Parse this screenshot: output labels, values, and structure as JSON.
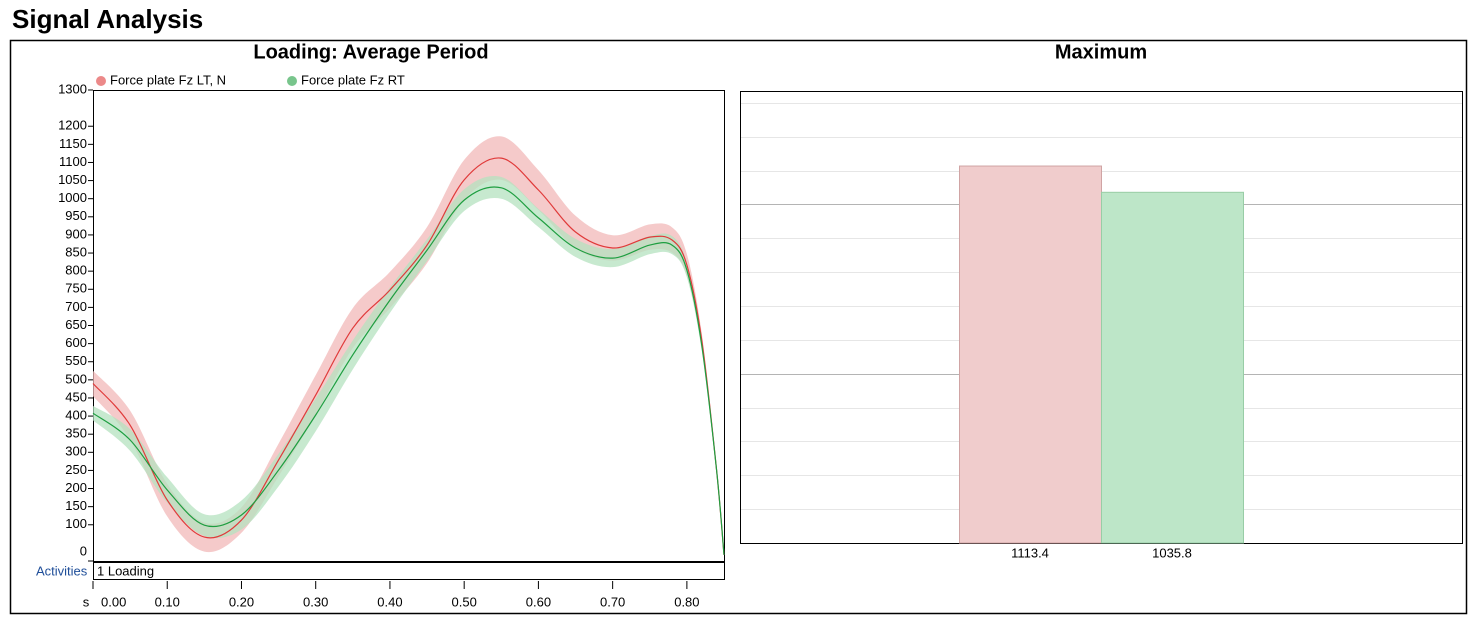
{
  "page": {
    "title": "Signal Analysis"
  },
  "activities": {
    "label": "Activities",
    "items": [
      "1 Loading"
    ]
  },
  "chart_data": [
    {
      "type": "line",
      "title": "Loading: Average Period",
      "x_label": "s",
      "x": [
        0,
        0.05,
        0.1,
        0.15,
        0.2,
        0.25,
        0.3,
        0.35,
        0.4,
        0.45,
        0.5,
        0.55,
        0.6,
        0.65,
        0.7,
        0.75,
        0.78,
        0.8,
        0.82,
        0.84,
        0.85
      ],
      "xlim": [
        0,
        0.85
      ],
      "xticks": [
        {
          "value": 0,
          "label": "0.00"
        },
        {
          "value": 0.1,
          "label": "0.10"
        },
        {
          "value": 0.2,
          "label": "0.20"
        },
        {
          "value": 0.3,
          "label": "0.30"
        },
        {
          "value": 0.4,
          "label": "0.40"
        },
        {
          "value": 0.5,
          "label": "0.50"
        },
        {
          "value": 0.6,
          "label": "0.60"
        },
        {
          "value": 0.7,
          "label": "0.70"
        },
        {
          "value": 0.8,
          "label": "0.80"
        }
      ],
      "ylim": [
        0,
        1300
      ],
      "yticks": [
        0,
        100,
        150,
        200,
        250,
        300,
        350,
        400,
        450,
        500,
        550,
        600,
        650,
        700,
        750,
        800,
        850,
        900,
        950,
        1000,
        1050,
        1100,
        1150,
        1200,
        1300
      ],
      "series": [
        {
          "name": "Force plate Fz LT, N",
          "color": "#e03a3a",
          "band_color": "#f2b8b8",
          "values": [
            490,
            375,
            168,
            66,
            113,
            279,
            458,
            643,
            748,
            872,
            1052,
            1112,
            1024,
            908,
            864,
            894,
            886,
            817,
            610,
            251,
            17
          ],
          "sd": [
            35,
            40,
            45,
            40,
            35,
            45,
            55,
            55,
            50,
            50,
            55,
            60,
            55,
            45,
            35,
            35,
            35,
            30,
            20,
            10,
            0
          ]
        },
        {
          "name": "Force plate Fz RT",
          "color": "#1e9e40",
          "band_color": "#b4e2bf",
          "values": [
            408,
            334,
            196,
            99,
            127,
            251,
            403,
            569,
            720,
            858,
            996,
            1030,
            947,
            864,
            836,
            872,
            872,
            803,
            596,
            251,
            17
          ],
          "sd": [
            20,
            30,
            35,
            30,
            40,
            45,
            45,
            40,
            35,
            30,
            30,
            30,
            25,
            25,
            25,
            25,
            25,
            20,
            15,
            10,
            0
          ]
        }
      ]
    },
    {
      "type": "bar",
      "title": "Maximum",
      "values": [
        1113.4,
        1035.8
      ],
      "colors": [
        "#f0cccc",
        "#bde6c8"
      ],
      "edge_colors": [
        "#d0a4a4",
        "#98cda6"
      ],
      "ylim": [
        0,
        1335
      ],
      "yticks": [
        100,
        200,
        300,
        400,
        500,
        600,
        700,
        800,
        900,
        1000,
        1100,
        1200,
        1300
      ],
      "major_yticks": [
        500,
        1000
      ]
    }
  ]
}
